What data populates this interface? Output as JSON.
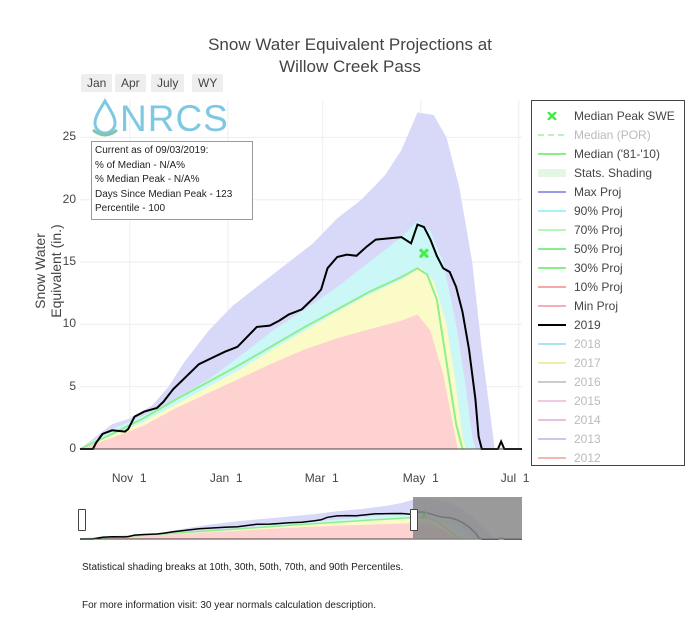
{
  "chart_data": {
    "type": "area",
    "title_line1": "Snow Water Equivalent Projections at",
    "title_line2": "Willow Creek Pass",
    "ylabel": "Snow Water Equivalent (in.)",
    "xlabel": "",
    "ylim": [
      0,
      28
    ],
    "xlim_days": [
      0,
      275
    ],
    "x_ticks": [
      {
        "day": 31,
        "label": "Nov  1"
      },
      {
        "day": 92,
        "label": "Jan  1"
      },
      {
        "day": 151,
        "label": "Mar  1"
      },
      {
        "day": 212,
        "label": "May  1"
      },
      {
        "day": 273,
        "label": "Jul  1"
      }
    ],
    "y_ticks": [
      0,
      5,
      10,
      15,
      20,
      25
    ],
    "range_buttons": [
      "Jan",
      "Apr",
      "July",
      "WY"
    ],
    "info_box": [
      "Current as of 09/03/2019:",
      "% of Median - N/A%",
      "% Median Peak - N/A%",
      "Days Since Median Peak - 123",
      "Percentile - 100"
    ],
    "median_peak": {
      "day": 214,
      "swe": 15.7
    },
    "series": [
      {
        "name": "Max Proj",
        "color": "#d8d8f8",
        "points": [
          [
            0,
            0
          ],
          [
            10,
            1
          ],
          [
            20,
            2
          ],
          [
            30,
            2.4
          ],
          [
            45,
            3.5
          ],
          [
            55,
            5
          ],
          [
            65,
            7
          ],
          [
            80,
            9.5
          ],
          [
            95,
            11.5
          ],
          [
            110,
            13
          ],
          [
            130,
            15
          ],
          [
            145,
            16.5
          ],
          [
            160,
            18.5
          ],
          [
            175,
            20
          ],
          [
            190,
            22
          ],
          [
            200,
            24
          ],
          [
            210,
            27
          ],
          [
            220,
            26.8
          ],
          [
            228,
            25
          ],
          [
            236,
            21
          ],
          [
            244,
            15
          ],
          [
            250,
            8
          ],
          [
            255,
            3
          ],
          [
            258,
            0
          ]
        ]
      },
      {
        "name": "90% Proj",
        "color": "#ccf7f7",
        "points": [
          [
            0,
            0
          ],
          [
            20,
            1.6
          ],
          [
            40,
            2.7
          ],
          [
            60,
            4.1
          ],
          [
            80,
            5.6
          ],
          [
            100,
            7.5
          ],
          [
            120,
            9.5
          ],
          [
            140,
            11.2
          ],
          [
            160,
            13
          ],
          [
            180,
            15
          ],
          [
            200,
            17
          ],
          [
            210,
            18.3
          ],
          [
            218,
            17.5
          ],
          [
            226,
            15
          ],
          [
            234,
            10
          ],
          [
            240,
            5
          ],
          [
            244,
            1
          ],
          [
            246,
            0
          ]
        ]
      },
      {
        "name": "70% Proj",
        "color": "#fbfbc8",
        "points": [
          [
            0,
            0
          ],
          [
            20,
            1.1
          ],
          [
            40,
            2.2
          ],
          [
            60,
            3.6
          ],
          [
            80,
            5
          ],
          [
            100,
            6.4
          ],
          [
            120,
            8
          ],
          [
            140,
            9.5
          ],
          [
            160,
            11
          ],
          [
            180,
            12.4
          ],
          [
            200,
            13.6
          ],
          [
            212,
            14.6
          ],
          [
            220,
            13.5
          ],
          [
            228,
            10
          ],
          [
            234,
            5
          ],
          [
            238,
            1
          ],
          [
            240,
            0
          ]
        ]
      },
      {
        "name": "30% Proj",
        "color": "#ffd2d2",
        "points": [
          [
            0,
            0
          ],
          [
            20,
            0.9
          ],
          [
            40,
            1.9
          ],
          [
            60,
            3.3
          ],
          [
            80,
            4.5
          ],
          [
            100,
            5.7
          ],
          [
            120,
            6.9
          ],
          [
            140,
            8
          ],
          [
            160,
            8.9
          ],
          [
            180,
            9.6
          ],
          [
            200,
            10.3
          ],
          [
            210,
            10.8
          ],
          [
            218,
            9.5
          ],
          [
            226,
            6
          ],
          [
            232,
            2
          ],
          [
            235,
            0
          ]
        ]
      },
      {
        "name": "50% Proj",
        "color": "#90ee90",
        "points": [
          [
            0,
            0
          ],
          [
            20,
            1.2
          ],
          [
            40,
            2.5
          ],
          [
            60,
            4
          ],
          [
            80,
            5.4
          ],
          [
            100,
            6.8
          ],
          [
            120,
            8.3
          ],
          [
            140,
            9.8
          ],
          [
            160,
            11.2
          ],
          [
            180,
            12.6
          ],
          [
            200,
            13.8
          ],
          [
            210,
            14.5
          ],
          [
            216,
            14
          ],
          [
            222,
            12
          ],
          [
            228,
            7
          ],
          [
            234,
            2
          ],
          [
            238,
            0
          ]
        ]
      },
      {
        "name": "2019",
        "color": "#000000",
        "points": [
          [
            0,
            0
          ],
          [
            8,
            0
          ],
          [
            10,
            0.5
          ],
          [
            14,
            1.2
          ],
          [
            20,
            1.5
          ],
          [
            28,
            1.4
          ],
          [
            30,
            1.6
          ],
          [
            34,
            2.6
          ],
          [
            40,
            3
          ],
          [
            48,
            3.3
          ],
          [
            52,
            3.8
          ],
          [
            58,
            4.8
          ],
          [
            66,
            5.8
          ],
          [
            74,
            6.8
          ],
          [
            82,
            7.3
          ],
          [
            90,
            7.8
          ],
          [
            98,
            8.2
          ],
          [
            104,
            9
          ],
          [
            110,
            9.8
          ],
          [
            118,
            9.9
          ],
          [
            124,
            10.3
          ],
          [
            130,
            10.8
          ],
          [
            138,
            11.2
          ],
          [
            146,
            12.2
          ],
          [
            150,
            12.8
          ],
          [
            154,
            14.5
          ],
          [
            160,
            15.4
          ],
          [
            166,
            15.6
          ],
          [
            172,
            15.5
          ],
          [
            178,
            16.2
          ],
          [
            184,
            16.8
          ],
          [
            192,
            16.9
          ],
          [
            200,
            17
          ],
          [
            206,
            16.5
          ],
          [
            210,
            18
          ],
          [
            214,
            17.8
          ],
          [
            218,
            16.8
          ],
          [
            222,
            15.5
          ],
          [
            226,
            14.5
          ],
          [
            230,
            14.2
          ],
          [
            234,
            13
          ],
          [
            238,
            11
          ],
          [
            242,
            8
          ],
          [
            246,
            4
          ],
          [
            248,
            1
          ],
          [
            250,
            0
          ],
          [
            260,
            0
          ],
          [
            262,
            0.6
          ],
          [
            264,
            0
          ],
          [
            275,
            0
          ]
        ]
      }
    ],
    "legend": [
      {
        "label": "Median Peak SWE",
        "kind": "marker",
        "color": "#44ee44",
        "faded": false
      },
      {
        "label": "Median (POR)",
        "kind": "dash",
        "color": "#bfefbf",
        "faded": true
      },
      {
        "label": "Median ('81-'10)",
        "kind": "line",
        "color": "#88ee88",
        "faded": false
      },
      {
        "label": "Stats. Shading",
        "kind": "box",
        "color": "#e3f8e3",
        "faded": false
      },
      {
        "label": "Max Proj",
        "kind": "line",
        "color": "#9a9ae6",
        "faded": false
      },
      {
        "label": "90% Proj",
        "kind": "line",
        "color": "#a5f5f5",
        "faded": false
      },
      {
        "label": "70% Proj",
        "kind": "line",
        "color": "#b7f7b7",
        "faded": false
      },
      {
        "label": "50% Proj",
        "kind": "line",
        "color": "#88ee88",
        "faded": false
      },
      {
        "label": "30% Proj",
        "kind": "line",
        "color": "#88ee88",
        "faded": false
      },
      {
        "label": "10% Proj",
        "kind": "line",
        "color": "#f4a8a8",
        "faded": false
      },
      {
        "label": "Min Proj",
        "kind": "line",
        "color": "#f4b0b0",
        "faded": false
      },
      {
        "label": "2019",
        "kind": "line",
        "color": "#000000",
        "faded": false
      },
      {
        "label": "2018",
        "kind": "line",
        "color": "#a5e8ee",
        "faded": true
      },
      {
        "label": "2017",
        "kind": "line",
        "color": "#f0eea8",
        "faded": true
      },
      {
        "label": "2016",
        "kind": "line",
        "color": "#cccccc",
        "faded": true
      },
      {
        "label": "2015",
        "kind": "line",
        "color": "#f0c8e8",
        "faded": true
      },
      {
        "label": "2014",
        "kind": "line",
        "color": "#e8c0e0",
        "faded": true
      },
      {
        "label": "2013",
        "kind": "line",
        "color": "#d2c4e6",
        "faded": true
      },
      {
        "label": "2012",
        "kind": "line",
        "color": "#f0b8b0",
        "faded": true
      }
    ]
  },
  "logo_text": "NRCS",
  "notes": {
    "shading": "Statistical shading breaks at 10th, 30th, 50th, 70th, and 90th Percentiles.",
    "info": "For more information visit: 30 year normals calculation description."
  }
}
